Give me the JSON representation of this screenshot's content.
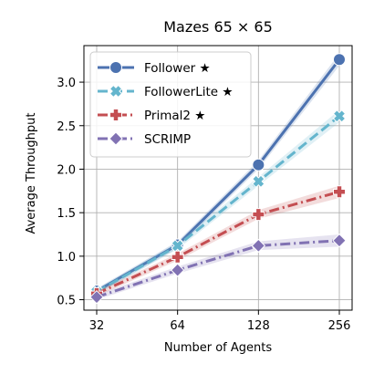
{
  "chart_data": {
    "type": "line",
    "title": "Mazes 65 × 65",
    "xlabel": "Number of Agents",
    "ylabel": "Average Throughput",
    "x": [
      32,
      64,
      128,
      256
    ],
    "xscale": "log2",
    "xticks": [
      "32",
      "64",
      "128",
      "256"
    ],
    "ylim": [
      0.38,
      3.42
    ],
    "yticks": [
      "0.5",
      "1.0",
      "1.5",
      "2.0",
      "2.5",
      "3.0"
    ],
    "grid": true,
    "legend": "upper-left",
    "series": [
      {
        "name": "Follower ★",
        "values": [
          0.6,
          1.13,
          2.05,
          3.26
        ],
        "ci": [
          0.03,
          0.04,
          0.05,
          0.07
        ],
        "color": "#4c72b0",
        "marker": "circle",
        "dash": "solid"
      },
      {
        "name": "FollowerLite ★",
        "values": [
          0.59,
          1.12,
          1.86,
          2.61
        ],
        "ci": [
          0.03,
          0.04,
          0.05,
          0.07
        ],
        "color": "#64b5cd",
        "marker": "x",
        "dash": "dashed"
      },
      {
        "name": "Primal2 ★",
        "values": [
          0.57,
          0.99,
          1.48,
          1.74
        ],
        "ci": [
          0.03,
          0.04,
          0.05,
          0.07
        ],
        "color": "#c44e52",
        "marker": "plus",
        "dash": "dashdot"
      },
      {
        "name": "SCRIMP",
        "values": [
          0.53,
          0.84,
          1.12,
          1.18
        ],
        "ci": [
          0.03,
          0.04,
          0.05,
          0.07
        ],
        "color": "#8172b3",
        "marker": "diamond",
        "dash": "dashdot"
      }
    ]
  }
}
